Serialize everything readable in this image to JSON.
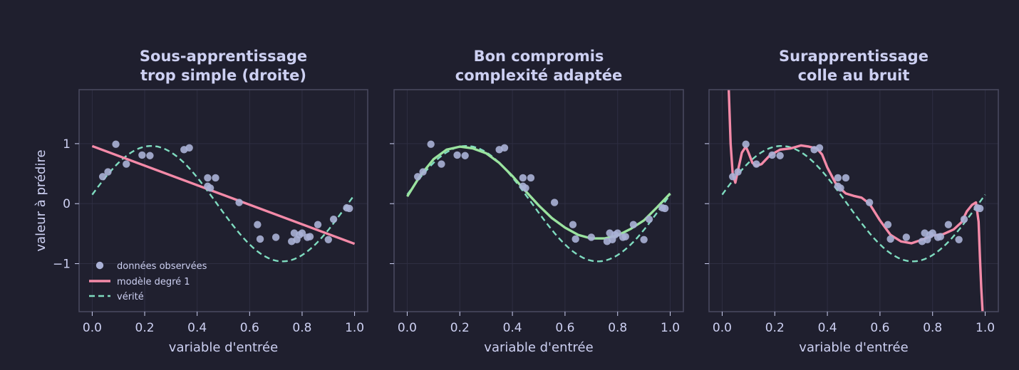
{
  "colors": {
    "background": "#1f1f2e",
    "panel": "#20202f",
    "spine": "#4a4a60",
    "grid": "#2e2e42",
    "text": "#cdd0f2",
    "points": "#aab1d6",
    "truth": "#7fdcc0",
    "model_pink": "#f48aa8",
    "model_green": "#9ae39f"
  },
  "chart_data": [
    {
      "type": "scatter",
      "title": [
        "Sous-apprentissage",
        "trop simple (droite)"
      ],
      "xlabel": "variable d'entrée",
      "ylabel": "valeur à prédire",
      "xlim": [
        -0.05,
        1.05
      ],
      "ylim": [
        -1.8,
        1.9
      ],
      "xticks": [
        "0.0",
        "0.2",
        "0.4",
        "0.6",
        "0.8",
        "1.0"
      ],
      "yticks": [
        "1",
        "0",
        "−1"
      ],
      "legend": [
        "données observées",
        "modèle degré 1",
        "vérité"
      ],
      "legend_position": "lower-left",
      "model_color": "model_pink",
      "model": {
        "x": [
          0.0,
          1.0
        ],
        "y": [
          0.96,
          -0.67
        ]
      }
    },
    {
      "type": "scatter",
      "title": [
        "Bon compromis",
        "complexité adaptée"
      ],
      "xlabel": "variable d'entrée",
      "ylabel": "",
      "xlim": [
        -0.05,
        1.05
      ],
      "ylim": [
        -1.8,
        1.9
      ],
      "xticks": [
        "0.0",
        "0.2",
        "0.4",
        "0.6",
        "0.8",
        "1.0"
      ],
      "yticks": [],
      "model_color": "model_green",
      "model": {
        "x": [
          0.0,
          0.05,
          0.1,
          0.15,
          0.2,
          0.25,
          0.3,
          0.35,
          0.4,
          0.45,
          0.5,
          0.55,
          0.6,
          0.65,
          0.7,
          0.75,
          0.8,
          0.85,
          0.9,
          0.95,
          1.0
        ],
        "y": [
          0.12,
          0.47,
          0.74,
          0.9,
          0.95,
          0.92,
          0.84,
          0.68,
          0.46,
          0.21,
          -0.03,
          -0.24,
          -0.4,
          -0.52,
          -0.58,
          -0.58,
          -0.53,
          -0.42,
          -0.28,
          -0.06,
          0.17
        ]
      }
    },
    {
      "type": "scatter",
      "title": [
        "Surapprentissage",
        "colle au bruit"
      ],
      "xlabel": "variable d'entrée",
      "ylabel": "",
      "xlim": [
        -0.05,
        1.05
      ],
      "ylim": [
        -1.8,
        1.9
      ],
      "xticks": [
        "0.0",
        "0.2",
        "0.4",
        "0.6",
        "0.8",
        "1.0"
      ],
      "yticks": [],
      "model_color": "model_pink",
      "model": {
        "x": [
          0.025,
          0.032,
          0.04,
          0.05,
          0.06,
          0.075,
          0.09,
          0.1,
          0.115,
          0.13,
          0.15,
          0.18,
          0.22,
          0.26,
          0.3,
          0.33,
          0.36,
          0.38,
          0.4,
          0.43,
          0.45,
          0.47,
          0.5,
          0.53,
          0.56,
          0.6,
          0.64,
          0.68,
          0.72,
          0.76,
          0.8,
          0.84,
          0.88,
          0.91,
          0.93,
          0.95,
          0.965,
          0.975,
          0.98,
          0.985,
          0.99
        ],
        "y": [
          1.9,
          1.0,
          0.5,
          0.35,
          0.55,
          0.85,
          0.95,
          0.85,
          0.68,
          0.63,
          0.66,
          0.8,
          0.9,
          0.92,
          0.97,
          0.95,
          0.92,
          0.82,
          0.6,
          0.35,
          0.25,
          0.17,
          0.13,
          0.1,
          0.0,
          -0.28,
          -0.52,
          -0.63,
          -0.66,
          -0.6,
          -0.53,
          -0.51,
          -0.43,
          -0.31,
          -0.13,
          -0.02,
          0.02,
          -0.3,
          -0.9,
          -1.4,
          -1.8
        ]
      }
    }
  ],
  "observations": {
    "x": [
      0.04,
      0.06,
      0.09,
      0.13,
      0.19,
      0.22,
      0.35,
      0.37,
      0.44,
      0.45,
      0.47,
      0.44,
      0.56,
      0.63,
      0.64,
      0.7,
      0.76,
      0.77,
      0.78,
      0.79,
      0.8,
      0.82,
      0.83,
      0.86,
      0.9,
      0.92,
      0.97,
      0.98
    ],
    "y": [
      0.45,
      0.53,
      0.99,
      0.66,
      0.81,
      0.8,
      0.9,
      0.93,
      0.43,
      0.26,
      0.43,
      0.29,
      0.02,
      -0.35,
      -0.59,
      -0.56,
      -0.63,
      -0.49,
      -0.6,
      -0.52,
      -0.49,
      -0.56,
      -0.55,
      -0.35,
      -0.6,
      -0.26,
      -0.07,
      -0.08
    ]
  }
}
